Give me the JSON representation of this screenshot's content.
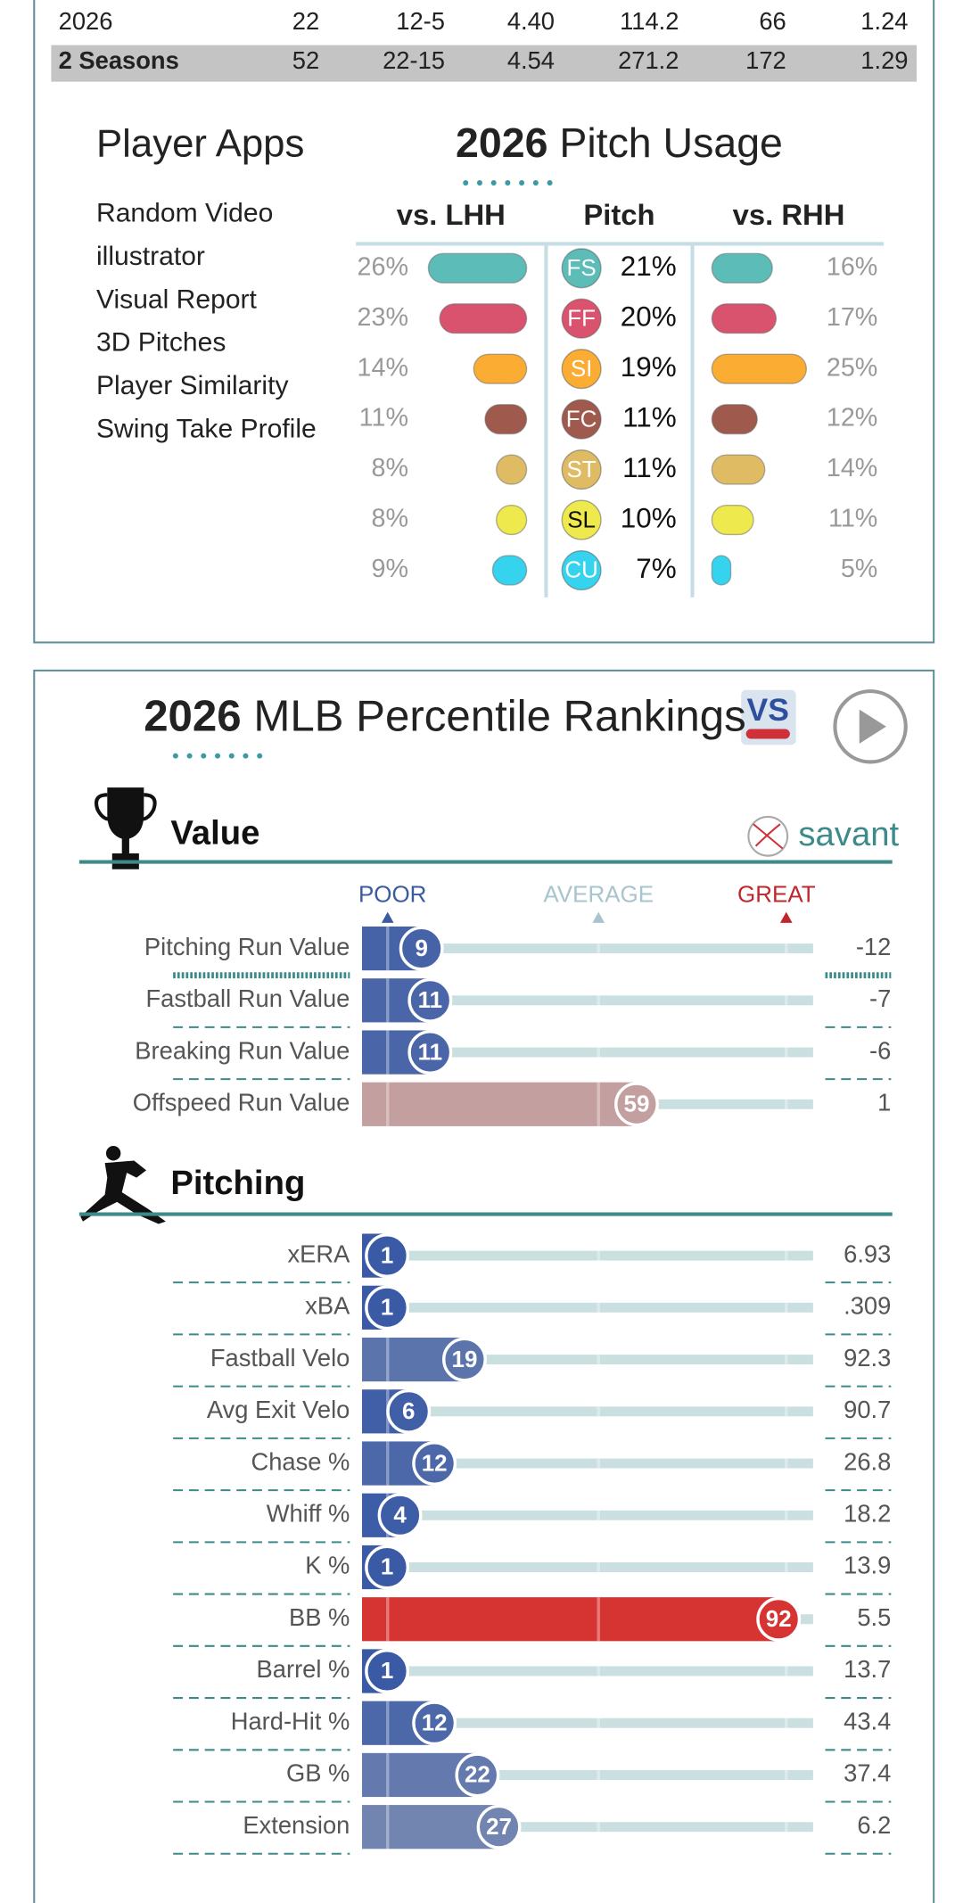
{
  "stats_table": {
    "rows": [
      {
        "label": "2026",
        "cells": [
          "22",
          "12-5",
          "4.40",
          "114.2",
          "66",
          "1.24"
        ]
      },
      {
        "label": "2 Seasons",
        "cells": [
          "52",
          "22-15",
          "4.54",
          "271.2",
          "172",
          "1.29"
        ]
      }
    ]
  },
  "player_apps": {
    "title": "Player Apps",
    "items": [
      "Random Video",
      "illustrator",
      "Visual Report",
      "3D Pitches",
      "Player Similarity",
      "Swing Take Profile"
    ]
  },
  "pitch_usage": {
    "year": "2026",
    "title": "Pitch Usage",
    "headers": [
      "vs. LHH",
      "Pitch",
      "vs. RHH"
    ],
    "rows": [
      {
        "code": "FS",
        "color": "#5bbcb8",
        "lhh": {
          "value": 26,
          "label": "26%"
        },
        "usage": {
          "value": 21,
          "label": "21%"
        },
        "rhh": {
          "value": 16,
          "label": "16%"
        }
      },
      {
        "code": "FF",
        "color": "#d9536e",
        "lhh": {
          "value": 23,
          "label": "23%"
        },
        "usage": {
          "value": 20,
          "label": "20%"
        },
        "rhh": {
          "value": 17,
          "label": "17%"
        }
      },
      {
        "code": "SI",
        "color": "#fbac33",
        "lhh": {
          "value": 14,
          "label": "14%"
        },
        "usage": {
          "value": 19,
          "label": "19%"
        },
        "rhh": {
          "value": 25,
          "label": "25%"
        }
      },
      {
        "code": "FC",
        "color": "#a05a4d",
        "lhh": {
          "value": 11,
          "label": "11%"
        },
        "usage": {
          "value": 11,
          "label": "11%"
        },
        "rhh": {
          "value": 12,
          "label": "12%"
        }
      },
      {
        "code": "ST",
        "color": "#dfbc64",
        "lhh": {
          "value": 8,
          "label": "8%"
        },
        "usage": {
          "value": 11,
          "label": "11%"
        },
        "rhh": {
          "value": 14,
          "label": "14%"
        }
      },
      {
        "code": "SL",
        "color": "#eee94c",
        "lhh": {
          "value": 8,
          "label": "8%"
        },
        "usage": {
          "value": 10,
          "label": "10%"
        },
        "rhh": {
          "value": 11,
          "label": "11%"
        }
      },
      {
        "code": "CU",
        "color": "#36d3ef",
        "lhh": {
          "value": 9,
          "label": "9%"
        },
        "usage": {
          "value": 7,
          "label": "7%"
        },
        "rhh": {
          "value": 5,
          "label": "5%"
        }
      }
    ]
  },
  "percentile": {
    "year": "2026",
    "title": "MLB Percentile Rankings",
    "scale": [
      "POOR",
      "AVERAGE",
      "GREAT"
    ],
    "brand": "savant",
    "sections": [
      {
        "title": "Value",
        "rows": [
          {
            "name": "Pitching Run Value",
            "percentile": 9,
            "stat": "-12"
          },
          {
            "name": "Fastball Run Value",
            "percentile": 11,
            "stat": "-7"
          },
          {
            "name": "Breaking Run Value",
            "percentile": 11,
            "stat": "-6"
          },
          {
            "name": "Offspeed Run Value",
            "percentile": 59,
            "stat": "1"
          }
        ]
      },
      {
        "title": "Pitching",
        "rows": [
          {
            "name": "xERA",
            "percentile": 1,
            "stat": "6.93"
          },
          {
            "name": "xBA",
            "percentile": 1,
            "stat": ".309"
          },
          {
            "name": "Fastball Velo",
            "percentile": 19,
            "stat": "92.3"
          },
          {
            "name": "Avg Exit Velo",
            "percentile": 6,
            "stat": "90.7"
          },
          {
            "name": "Chase %",
            "percentile": 12,
            "stat": "26.8"
          },
          {
            "name": "Whiff %",
            "percentile": 4,
            "stat": "18.2"
          },
          {
            "name": "K %",
            "percentile": 1,
            "stat": "13.9"
          },
          {
            "name": "BB %",
            "percentile": 92,
            "stat": "5.5"
          },
          {
            "name": "Barrel %",
            "percentile": 1,
            "stat": "13.7"
          },
          {
            "name": "Hard-Hit %",
            "percentile": 12,
            "stat": "43.4"
          },
          {
            "name": "GB %",
            "percentile": 22,
            "stat": "37.4"
          },
          {
            "name": "Extension",
            "percentile": 27,
            "stat": "6.2"
          }
        ]
      }
    ]
  }
}
